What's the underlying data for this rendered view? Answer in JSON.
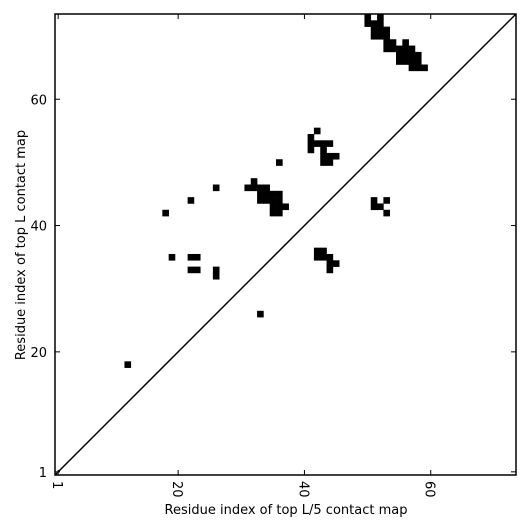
{
  "chart_data": {
    "type": "scatter",
    "xlabel": "Residue index of top L/5 contact map",
    "ylabel": "Residue index of top L contact map",
    "xlim": [
      0.5,
      73.5
    ],
    "ylim": [
      0.5,
      73.5
    ],
    "xticks": [
      1,
      20,
      40,
      60
    ],
    "yticks": [
      1,
      20,
      40,
      60
    ],
    "color": "#000000",
    "x": [
      12,
      33,
      18,
      22,
      26,
      19,
      22,
      23,
      22,
      23,
      26,
      26,
      36,
      32,
      31,
      32,
      33,
      34,
      33,
      34,
      35,
      36,
      33,
      34,
      35,
      36,
      35,
      36,
      37,
      35,
      36,
      42,
      41,
      41,
      42,
      43,
      44,
      41,
      43,
      43,
      44,
      45,
      43,
      44,
      42,
      43,
      42,
      43,
      44,
      44,
      45,
      44,
      51,
      53,
      51,
      52,
      53,
      50,
      52,
      50,
      51,
      52,
      51,
      52,
      53,
      51,
      52,
      53,
      53,
      54,
      56,
      53,
      54,
      55,
      56,
      57,
      55,
      56,
      57,
      58,
      55,
      56,
      57,
      58,
      57,
      58,
      59
    ],
    "y": [
      18,
      26,
      42,
      44,
      46,
      35,
      35,
      35,
      33,
      33,
      33,
      32,
      50,
      47,
      46,
      46,
      46,
      46,
      45,
      45,
      45,
      45,
      44,
      44,
      44,
      44,
      43,
      43,
      43,
      42,
      42,
      55,
      54,
      53,
      53,
      53,
      53,
      52,
      52,
      51,
      51,
      51,
      50,
      50,
      36,
      36,
      35,
      35,
      35,
      34,
      34,
      33,
      44,
      44,
      43,
      43,
      42,
      73,
      73,
      72,
      72,
      72,
      71,
      71,
      71,
      70,
      70,
      70,
      69,
      69,
      69,
      68,
      68,
      68,
      68,
      68,
      67,
      67,
      67,
      67,
      66,
      66,
      66,
      66,
      65,
      65,
      65
    ]
  }
}
